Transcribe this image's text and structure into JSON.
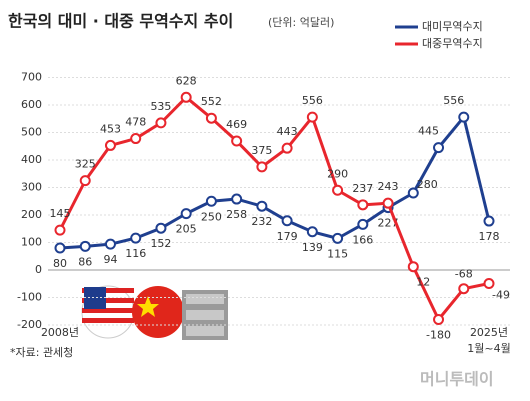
{
  "chart_data": {
    "type": "line",
    "title": "한국의 대미 · 대중 무역수지 추이",
    "subtitle": "(단위: 억달러)",
    "source": "*자료: 관세청",
    "watermark": "머니투데이",
    "categories": [
      "2008년",
      null,
      null,
      null,
      null,
      null,
      null,
      null,
      null,
      null,
      null,
      null,
      null,
      null,
      null,
      null,
      null,
      "2025년"
    ],
    "period_note": "1월~4월",
    "series": [
      {
        "name": "대미무역수지",
        "color": "#1f3f8f",
        "values": [
          80,
          86,
          94,
          116,
          152,
          205,
          250,
          258,
          232,
          179,
          139,
          115,
          166,
          227,
          280,
          445,
          556,
          178
        ]
      },
      {
        "name": "대중무역수지",
        "color": "#e8262d",
        "values": [
          145,
          325,
          453,
          478,
          535,
          628,
          552,
          469,
          375,
          443,
          556,
          290,
          237,
          243,
          12,
          -180,
          -68,
          -49
        ]
      }
    ],
    "ylim": [
      -200,
      800
    ],
    "yticks": [
      -200,
      -100,
      0,
      100,
      200,
      300,
      400,
      500,
      600,
      700
    ],
    "grid": true,
    "legend": "top-right"
  }
}
